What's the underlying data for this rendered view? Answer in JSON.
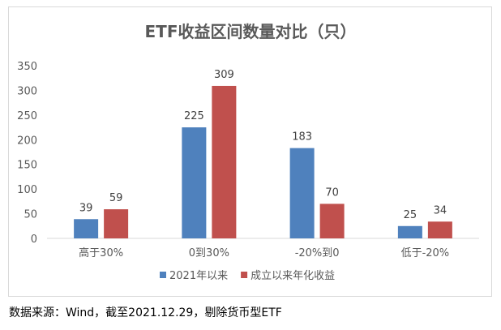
{
  "chart_data": {
    "type": "bar",
    "title": "ETF收益区间数量对比（只）",
    "categories": [
      "高于30%",
      "0到30%",
      "-20%到0",
      "低于-20%"
    ],
    "series": [
      {
        "name": "2021年以来",
        "values": [
          39,
          225,
          183,
          25
        ],
        "color": "#4F81BD"
      },
      {
        "name": "成立以来年化收益",
        "values": [
          59,
          309,
          70,
          34
        ],
        "color": "#C0504D"
      }
    ],
    "ylim": [
      0,
      350
    ],
    "yticks": [
      0,
      50,
      100,
      150,
      200,
      250,
      300,
      350
    ],
    "grid": false,
    "legend": "bottom",
    "xlabel": "",
    "ylabel": ""
  },
  "source_note": "数据来源：Wind，截至2021.12.29，剔除货币型ETF"
}
